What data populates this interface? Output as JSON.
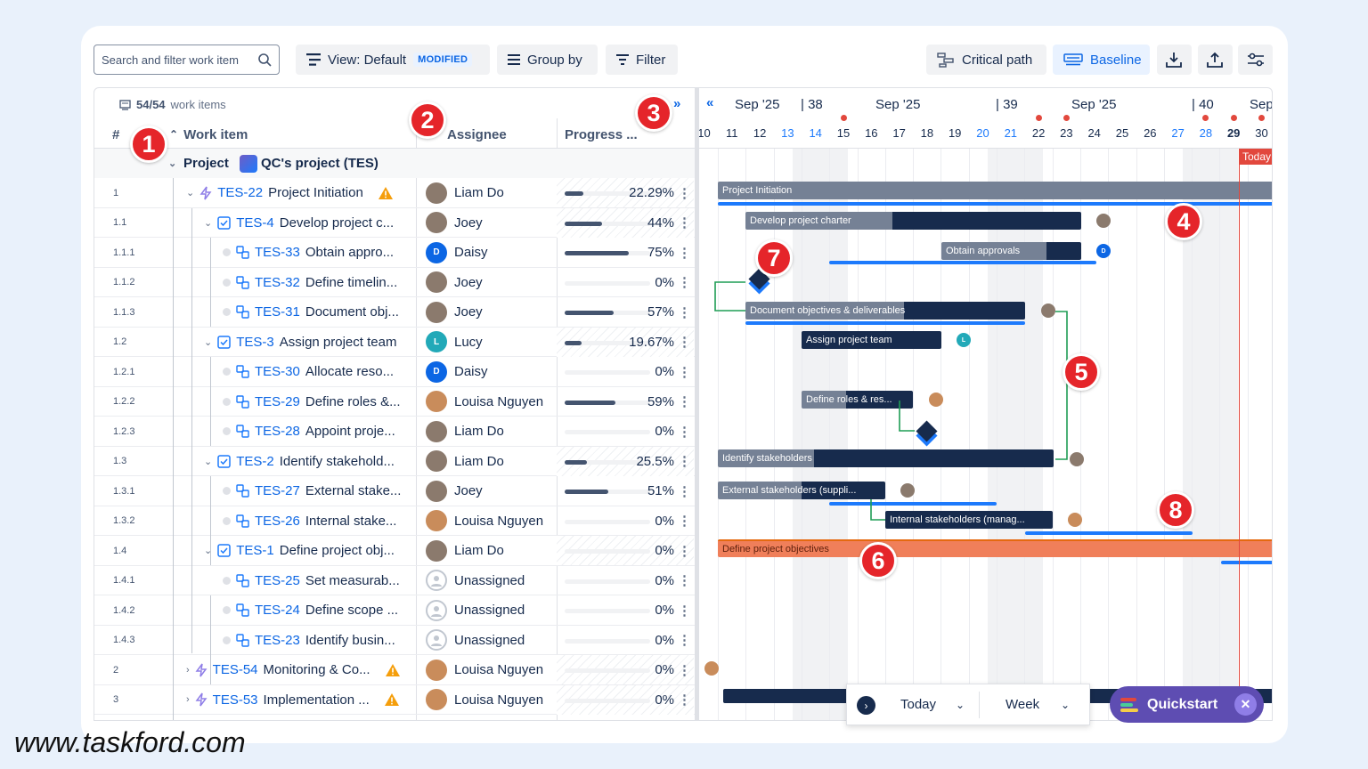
{
  "toolbar": {
    "search_placeholder": "Search and filter work item",
    "view_label": "View: Default",
    "view_badge": "MODIFIED",
    "group_by": "Group by",
    "filter": "Filter",
    "critical_path": "Critical path",
    "baseline": "Baseline"
  },
  "grid": {
    "count": "54/54",
    "count_suffix": "work items",
    "col_num": "#",
    "col_work_item": "Work item",
    "col_assignee": "Assignee",
    "col_progress": "Progress ...",
    "group_label": "Project",
    "group_value": "QC's project (TES)"
  },
  "rows": [
    {
      "num": "1",
      "key": "TES-22",
      "title": "Project Initiation",
      "assignee": "Liam Do",
      "progress": "22.29%",
      "pct": 22.29,
      "type": "epic",
      "warn": true
    },
    {
      "num": "1.1",
      "key": "TES-4",
      "title": "Develop project c...",
      "assignee": "Joey",
      "progress": "44%",
      "pct": 44,
      "type": "task"
    },
    {
      "num": "1.1.1",
      "key": "TES-33",
      "title": "Obtain appro...",
      "assignee": "Daisy",
      "progress": "75%",
      "pct": 75,
      "type": "sub"
    },
    {
      "num": "1.1.2",
      "key": "TES-32",
      "title": "Define timelin...",
      "assignee": "Joey",
      "progress": "0%",
      "pct": 0,
      "type": "sub"
    },
    {
      "num": "1.1.3",
      "key": "TES-31",
      "title": "Document obj...",
      "assignee": "Joey",
      "progress": "57%",
      "pct": 57,
      "type": "sub"
    },
    {
      "num": "1.2",
      "key": "TES-3",
      "title": "Assign project team",
      "assignee": "Lucy",
      "progress": "19.67%",
      "pct": 19.67,
      "type": "task"
    },
    {
      "num": "1.2.1",
      "key": "TES-30",
      "title": "Allocate reso...",
      "assignee": "Daisy",
      "progress": "0%",
      "pct": 0,
      "type": "sub"
    },
    {
      "num": "1.2.2",
      "key": "TES-29",
      "title": "Define roles &...",
      "assignee": "Louisa Nguyen",
      "progress": "59%",
      "pct": 59,
      "type": "sub"
    },
    {
      "num": "1.2.3",
      "key": "TES-28",
      "title": "Appoint proje...",
      "assignee": "Liam Do",
      "progress": "0%",
      "pct": 0,
      "type": "sub"
    },
    {
      "num": "1.3",
      "key": "TES-2",
      "title": "Identify stakehold...",
      "assignee": "Liam Do",
      "progress": "25.5%",
      "pct": 25.5,
      "type": "task"
    },
    {
      "num": "1.3.1",
      "key": "TES-27",
      "title": "External stake...",
      "assignee": "Joey",
      "progress": "51%",
      "pct": 51,
      "type": "sub"
    },
    {
      "num": "1.3.2",
      "key": "TES-26",
      "title": "Internal stake...",
      "assignee": "Louisa Nguyen",
      "progress": "0%",
      "pct": 0,
      "type": "sub"
    },
    {
      "num": "1.4",
      "key": "TES-1",
      "title": "Define project obj...",
      "assignee": "Liam Do",
      "progress": "0%",
      "pct": 0,
      "type": "task"
    },
    {
      "num": "1.4.1",
      "key": "TES-25",
      "title": "Set measurab...",
      "assignee": "Unassigned",
      "progress": "0%",
      "pct": 0,
      "type": "sub"
    },
    {
      "num": "1.4.2",
      "key": "TES-24",
      "title": "Define scope ...",
      "assignee": "Unassigned",
      "progress": "0%",
      "pct": 0,
      "type": "sub"
    },
    {
      "num": "1.4.3",
      "key": "TES-23",
      "title": "Identify busin...",
      "assignee": "Unassigned",
      "progress": "0%",
      "pct": 0,
      "type": "sub"
    },
    {
      "num": "2",
      "key": "TES-54",
      "title": "Monitoring & Co...",
      "assignee": "Louisa Nguyen",
      "progress": "0%",
      "pct": 0,
      "type": "epic",
      "warn": true
    },
    {
      "num": "3",
      "key": "TES-53",
      "title": "Implementation ...",
      "assignee": "Louisa Nguyen",
      "progress": "0%",
      "pct": 0,
      "type": "epic",
      "warn": true
    }
  ],
  "gantt": {
    "months": [
      "Sep '25",
      "Sep '25",
      "Sep '25",
      "Sep"
    ],
    "weeks": [
      "38",
      "39",
      "40"
    ],
    "days": [
      "10",
      "11",
      "12",
      "13",
      "14",
      "15",
      "16",
      "17",
      "18",
      "19",
      "20",
      "21",
      "22",
      "23",
      "24",
      "25",
      "26",
      "27",
      "28",
      "29",
      "30"
    ],
    "today_label": "Today",
    "bars": [
      {
        "label": "Project Initiation"
      },
      {
        "label": "Develop project charter"
      },
      {
        "label": "Obtain approvals"
      },
      {
        "label": "Document objectives & deliverables"
      },
      {
        "label": "Assign project team"
      },
      {
        "label": "Define roles & res..."
      },
      {
        "label": "Identify stakeholders"
      },
      {
        "label": "External stakeholders (suppli..."
      },
      {
        "label": "Internal stakeholders (manag..."
      },
      {
        "label": "Define project objectives"
      }
    ]
  },
  "bottom": {
    "today": "Today",
    "scale": "Week"
  },
  "quickstart": "Quickstart",
  "callouts": [
    "1",
    "2",
    "3",
    "4",
    "5",
    "6",
    "7",
    "8"
  ],
  "watermark": "www.taskford.com",
  "initials": {
    "Daisy": "D",
    "Lucy": "L"
  }
}
